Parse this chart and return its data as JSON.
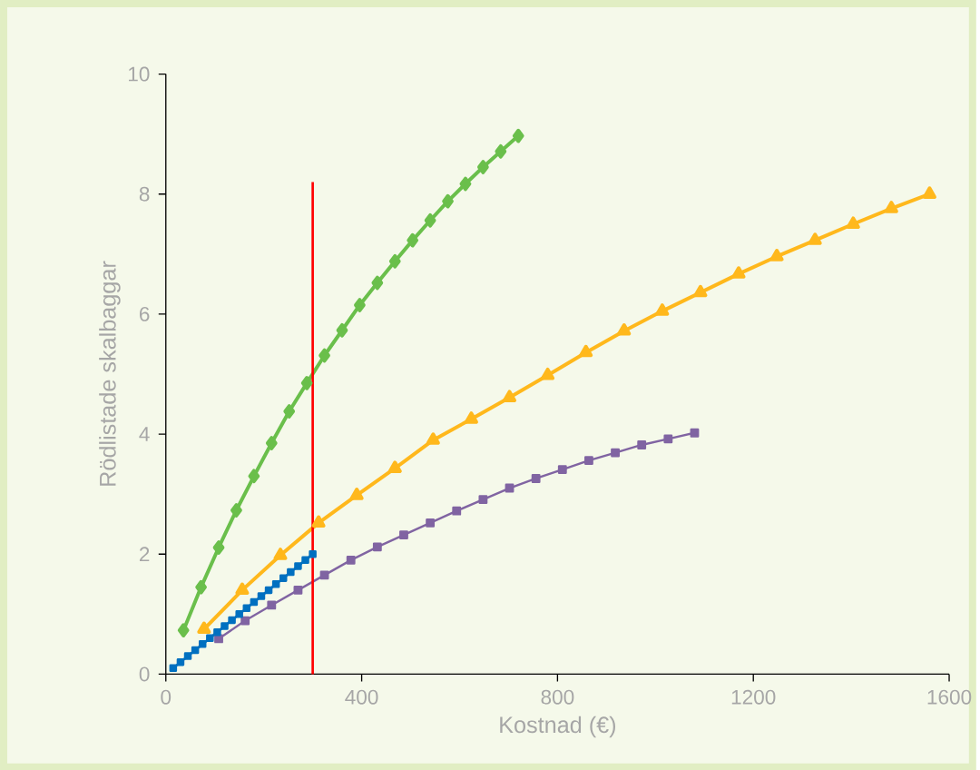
{
  "chart_data": {
    "type": "line",
    "xlabel": "Kostnad (€)",
    "ylabel": "Rödlistade skalbaggar",
    "xlim": [
      0,
      1600
    ],
    "ylim": [
      0,
      10
    ],
    "xticks": [
      0,
      400,
      800,
      1200,
      1600
    ],
    "yticks": [
      0,
      2,
      4,
      6,
      8,
      10
    ],
    "grid": false,
    "line_style": "solid",
    "series": [
      {
        "color": "#6abf4b",
        "marker": "diamond",
        "x": [
          36,
          72,
          108,
          144,
          180,
          216,
          252,
          288,
          324,
          360,
          396,
          432,
          468,
          504,
          540,
          576,
          612,
          648,
          684,
          720
        ],
        "values": [
          0.73,
          1.45,
          2.11,
          2.73,
          3.3,
          3.85,
          4.38,
          4.85,
          5.31,
          5.73,
          6.15,
          6.52,
          6.88,
          7.23,
          7.56,
          7.88,
          8.17,
          8.45,
          8.71,
          8.97
        ]
      },
      {
        "color": "#ffb81c",
        "marker": "triangle",
        "x": [
          78,
          156,
          234,
          312,
          390,
          468,
          546,
          624,
          702,
          780,
          858,
          936,
          1014,
          1092,
          1170,
          1248,
          1326,
          1404,
          1482,
          1560
        ],
        "values": [
          0.75,
          1.4,
          1.98,
          2.52,
          2.98,
          3.43,
          3.9,
          4.25,
          4.61,
          4.98,
          5.36,
          5.72,
          6.05,
          6.36,
          6.67,
          6.96,
          7.23,
          7.5,
          7.76,
          8.0
        ]
      },
      {
        "color": "#8064a2",
        "marker": "square",
        "x": [
          108,
          162,
          216,
          270,
          324,
          378,
          432,
          486,
          540,
          594,
          648,
          702,
          756,
          810,
          864,
          918,
          972,
          1026,
          1080
        ],
        "values": [
          0.59,
          0.89,
          1.15,
          1.4,
          1.65,
          1.9,
          2.12,
          2.32,
          2.52,
          2.72,
          2.91,
          3.1,
          3.26,
          3.41,
          3.56,
          3.69,
          3.82,
          3.92,
          4.02
        ]
      },
      {
        "color": "#0070c0",
        "marker": "square",
        "x": [
          15,
          30,
          45,
          60,
          75,
          90,
          105,
          120,
          135,
          150,
          165,
          180,
          195,
          210,
          225,
          240,
          255,
          270,
          285,
          300
        ],
        "values": [
          0.1,
          0.2,
          0.3,
          0.4,
          0.5,
          0.6,
          0.7,
          0.8,
          0.9,
          1.0,
          1.1,
          1.2,
          1.3,
          1.4,
          1.5,
          1.6,
          1.7,
          1.8,
          1.9,
          2.0
        ]
      },
      {
        "color": "#ff0000",
        "marker": "none",
        "x": [
          300,
          300
        ],
        "values": [
          0,
          8.2
        ]
      }
    ]
  }
}
